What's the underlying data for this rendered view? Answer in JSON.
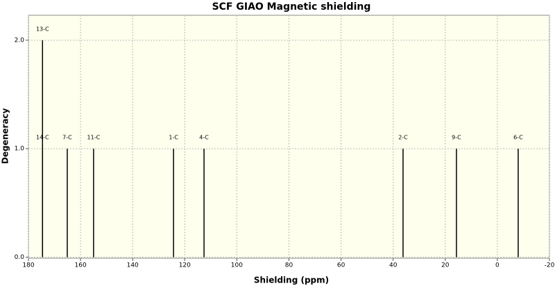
{
  "chart_data": {
    "type": "stick",
    "title": "SCF GIAO Magnetic shielding",
    "x_label": "Shielding (ppm)",
    "y_label": "Degeneracy",
    "x": [
      174.6,
      174.6,
      165.1,
      155.0,
      124.3,
      112.6,
      36.2,
      15.7,
      -8.0
    ],
    "values": [
      2,
      1,
      1,
      1,
      1,
      1,
      1,
      1,
      1
    ],
    "point_labels": [
      "13-C",
      "14-C",
      "7-C",
      "11-C",
      "1-C",
      "4-C",
      "2-C",
      "9-C",
      "6-C"
    ],
    "color": "#000000",
    "xlim": [
      180,
      -20
    ],
    "xticks": [
      180,
      160,
      140,
      120,
      100,
      80,
      60,
      40,
      20,
      0,
      -20
    ],
    "ylim": [
      -0.01,
      2.23
    ],
    "yticks": [
      {
        "value": 0,
        "label": "0.0"
      },
      {
        "value": 1,
        "label": "1.0"
      },
      {
        "value": 2,
        "label": "2.0"
      }
    ],
    "grid": true,
    "plot_background": "#ffffee"
  }
}
